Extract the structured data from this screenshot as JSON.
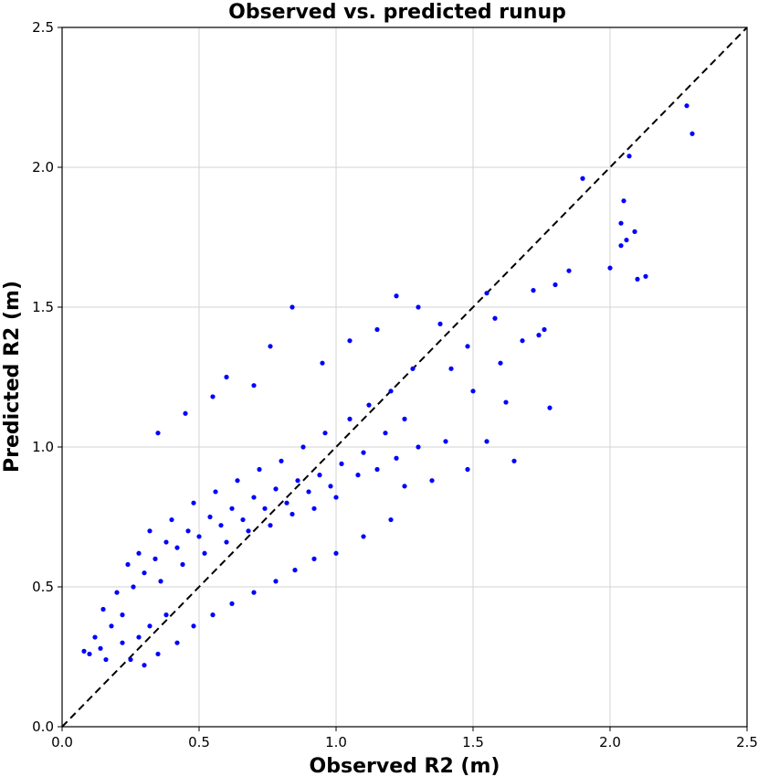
{
  "chart_data": {
    "type": "scatter",
    "title": "Observed vs. predicted runup",
    "xlabel": "Observed R2 (m)",
    "ylabel": "Predicted R2 (m)",
    "xlim": [
      0.0,
      2.5
    ],
    "ylim": [
      0.0,
      2.5
    ],
    "xticks": [
      "0.0",
      "0.5",
      "1.0",
      "1.5",
      "2.0",
      "2.5"
    ],
    "yticks": [
      "0.0",
      "0.5",
      "1.0",
      "1.5",
      "2.0",
      "2.5"
    ],
    "grid": true,
    "point_color": "#0000ff",
    "reference_line": {
      "style": "dashed",
      "color": "#000000",
      "from": [
        0.0,
        0.0
      ],
      "to": [
        2.5,
        2.5
      ]
    },
    "points": [
      [
        0.12,
        0.32
      ],
      [
        0.15,
        0.42
      ],
      [
        0.18,
        0.36
      ],
      [
        0.2,
        0.48
      ],
      [
        0.22,
        0.4
      ],
      [
        0.24,
        0.58
      ],
      [
        0.26,
        0.5
      ],
      [
        0.28,
        0.62
      ],
      [
        0.3,
        0.55
      ],
      [
        0.32,
        0.7
      ],
      [
        0.34,
        0.6
      ],
      [
        0.36,
        0.52
      ],
      [
        0.38,
        0.66
      ],
      [
        0.4,
        0.74
      ],
      [
        0.42,
        0.64
      ],
      [
        0.44,
        0.58
      ],
      [
        0.46,
        0.7
      ],
      [
        0.48,
        0.8
      ],
      [
        0.5,
        0.68
      ],
      [
        0.52,
        0.62
      ],
      [
        0.54,
        0.75
      ],
      [
        0.56,
        0.84
      ],
      [
        0.58,
        0.72
      ],
      [
        0.6,
        0.66
      ],
      [
        0.62,
        0.78
      ],
      [
        0.64,
        0.88
      ],
      [
        0.66,
        0.74
      ],
      [
        0.68,
        0.7
      ],
      [
        0.7,
        0.82
      ],
      [
        0.72,
        0.92
      ],
      [
        0.74,
        0.78
      ],
      [
        0.76,
        0.72
      ],
      [
        0.78,
        0.85
      ],
      [
        0.8,
        0.95
      ],
      [
        0.82,
        0.8
      ],
      [
        0.84,
        0.76
      ],
      [
        0.86,
        0.88
      ],
      [
        0.88,
        1.0
      ],
      [
        0.9,
        0.84
      ],
      [
        0.92,
        0.78
      ],
      [
        0.94,
        0.9
      ],
      [
        0.96,
        1.05
      ],
      [
        0.98,
        0.86
      ],
      [
        1.0,
        0.82
      ],
      [
        1.02,
        0.94
      ],
      [
        1.05,
        1.1
      ],
      [
        1.08,
        0.9
      ],
      [
        1.1,
        0.98
      ],
      [
        1.12,
        1.15
      ],
      [
        1.15,
        0.92
      ],
      [
        1.18,
        1.05
      ],
      [
        1.2,
        1.2
      ],
      [
        1.22,
        0.96
      ],
      [
        1.25,
        1.1
      ],
      [
        1.28,
        1.28
      ],
      [
        1.3,
        1.0
      ],
      [
        0.35,
        1.05
      ],
      [
        0.45,
        1.12
      ],
      [
        0.55,
        1.18
      ],
      [
        0.6,
        1.25
      ],
      [
        0.7,
        1.22
      ],
      [
        0.76,
        1.36
      ],
      [
        0.84,
        1.5
      ],
      [
        0.95,
        1.3
      ],
      [
        1.05,
        1.38
      ],
      [
        1.15,
        1.42
      ],
      [
        1.22,
        1.54
      ],
      [
        1.3,
        1.5
      ],
      [
        1.38,
        1.44
      ],
      [
        1.42,
        1.28
      ],
      [
        1.48,
        1.36
      ],
      [
        1.5,
        1.2
      ],
      [
        1.55,
        1.55
      ],
      [
        1.58,
        1.46
      ],
      [
        1.6,
        1.3
      ],
      [
        1.62,
        1.16
      ],
      [
        1.65,
        0.95
      ],
      [
        1.55,
        1.02
      ],
      [
        1.48,
        0.92
      ],
      [
        1.4,
        1.02
      ],
      [
        1.35,
        0.88
      ],
      [
        1.25,
        0.86
      ],
      [
        1.2,
        0.74
      ],
      [
        1.1,
        0.68
      ],
      [
        1.0,
        0.62
      ],
      [
        0.92,
        0.6
      ],
      [
        0.85,
        0.56
      ],
      [
        0.78,
        0.52
      ],
      [
        0.7,
        0.48
      ],
      [
        0.62,
        0.44
      ],
      [
        0.55,
        0.4
      ],
      [
        0.48,
        0.36
      ],
      [
        0.42,
        0.3
      ],
      [
        0.35,
        0.26
      ],
      [
        0.3,
        0.22
      ],
      [
        0.25,
        0.24
      ],
      [
        0.08,
        0.27
      ],
      [
        0.1,
        0.26
      ],
      [
        0.14,
        0.28
      ],
      [
        0.16,
        0.24
      ],
      [
        0.22,
        0.3
      ],
      [
        0.28,
        0.32
      ],
      [
        0.32,
        0.36
      ],
      [
        0.38,
        0.4
      ],
      [
        1.68,
        1.38
      ],
      [
        1.72,
        1.56
      ],
      [
        1.74,
        1.4
      ],
      [
        1.76,
        1.42
      ],
      [
        1.78,
        1.14
      ],
      [
        1.8,
        1.58
      ],
      [
        1.85,
        1.63
      ],
      [
        1.9,
        1.96
      ],
      [
        2.0,
        1.64
      ],
      [
        2.04,
        1.72
      ],
      [
        2.04,
        1.8
      ],
      [
        2.05,
        1.88
      ],
      [
        2.06,
        1.74
      ],
      [
        2.07,
        2.04
      ],
      [
        2.09,
        1.77
      ],
      [
        2.1,
        1.6
      ],
      [
        2.13,
        1.61
      ],
      [
        2.28,
        2.22
      ],
      [
        2.3,
        2.12
      ]
    ]
  }
}
